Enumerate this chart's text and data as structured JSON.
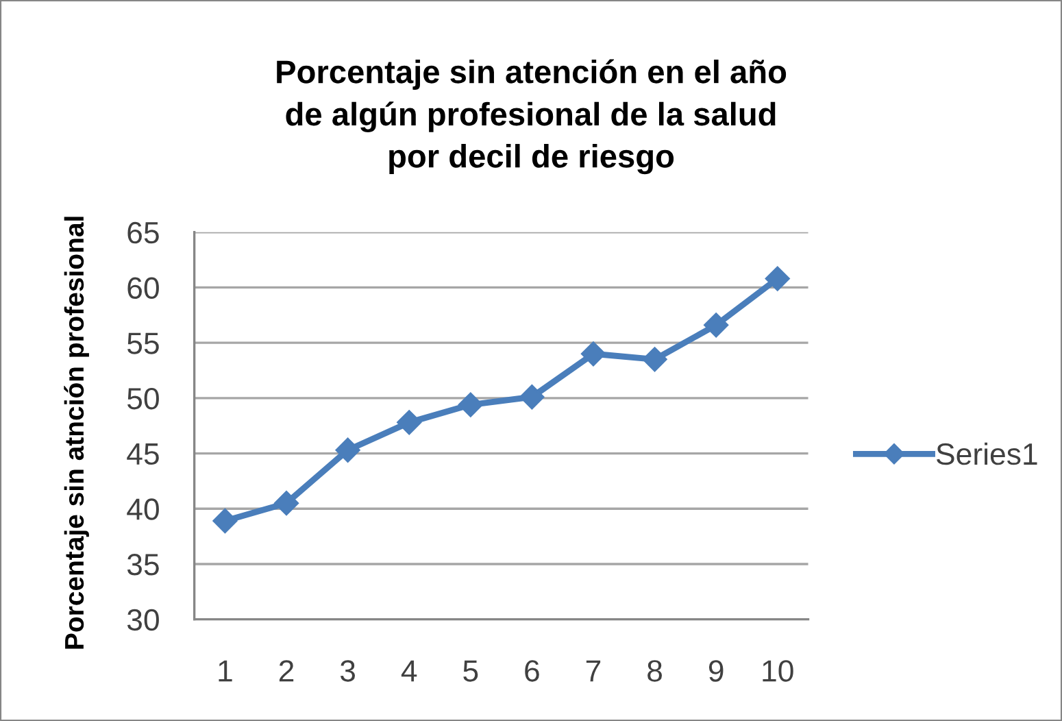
{
  "chart_data": {
    "type": "line",
    "title": "Porcentaje sin atención en el año\nde algún profesional de la salud\npor decil de riesgo",
    "ylabel": "Porcentaje sin atnción profesional",
    "categories": [
      "1",
      "2",
      "3",
      "4",
      "5",
      "6",
      "7",
      "8",
      "9",
      "10"
    ],
    "series": [
      {
        "name": "Series1",
        "color": "#4a7ebb",
        "values": [
          38.9,
          40.5,
          45.3,
          47.8,
          49.4,
          50.1,
          54.0,
          53.5,
          56.6,
          60.8
        ]
      }
    ],
    "ylim": [
      30,
      65
    ],
    "yticks": [
      30,
      35,
      40,
      45,
      50,
      55,
      60,
      65
    ],
    "grid": "y",
    "legend": "right",
    "marker": "diamond",
    "line_style": "solid"
  }
}
